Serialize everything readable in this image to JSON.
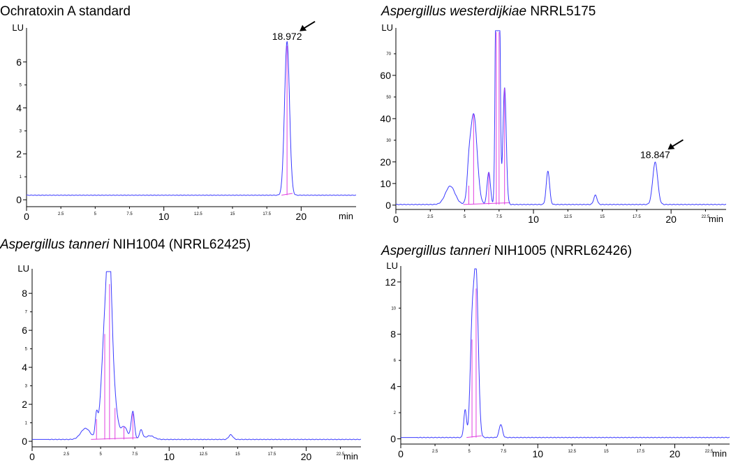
{
  "chart_data": [
    {
      "type": "line",
      "title_parts": [
        {
          "text": "Ochratoxin A standard",
          "italic": false
        }
      ],
      "ylabel": "LU",
      "xlabel": "min",
      "xlim": [
        0,
        24
      ],
      "ylim": [
        -0.3,
        7.3
      ],
      "x_major_ticks": [
        0,
        10,
        20
      ],
      "x_minor_ticks": [
        2.5,
        5,
        7.5,
        12.5,
        15,
        17.5
      ],
      "y_major_ticks": [
        0,
        2,
        4,
        6
      ],
      "y_minor_ticks": [
        1,
        3,
        5
      ],
      "baseline": 0.2,
      "peaks": [
        {
          "rt": 18.972,
          "height": 6.7,
          "width": 0.18
        }
      ],
      "integration_markers": [
        {
          "rt": 18.972,
          "height": 6.7
        }
      ],
      "annotations": [
        {
          "text": "18.972",
          "x": 18.972,
          "y": 6.85,
          "arrow": true
        }
      ],
      "series_color": "#3a3aff",
      "integration_color": "#e040e0"
    },
    {
      "type": "line",
      "title_parts": [
        {
          "text": "Aspergillus westerdijkiae",
          "italic": true
        },
        {
          "text": " NRRL5175",
          "italic": false
        }
      ],
      "ylabel": "LU",
      "xlabel": "min",
      "xlim": [
        0,
        24
      ],
      "ylim": [
        -2,
        80
      ],
      "x_major_ticks": [
        0,
        10,
        20
      ],
      "x_minor_ticks": [
        2.5,
        5,
        7.5,
        12.5,
        15,
        17.5,
        22.5
      ],
      "y_major_ticks": [
        0,
        10,
        20,
        40,
        60
      ],
      "y_minor_ticks": [
        30,
        50,
        70
      ],
      "baseline": 0.3,
      "peaks": [
        {
          "rt": 3.95,
          "height": 8.5,
          "width": 0.35
        },
        {
          "rt": 5.3,
          "height": 9,
          "width": 0.12
        },
        {
          "rt": 5.65,
          "height": 42,
          "width": 0.25
        },
        {
          "rt": 6.75,
          "height": 15,
          "width": 0.12
        },
        {
          "rt": 7.3,
          "height": 120,
          "width": 0.08
        },
        {
          "rt": 7.5,
          "height": 120,
          "width": 0.08
        },
        {
          "rt": 7.9,
          "height": 54,
          "width": 0.12
        },
        {
          "rt": 11.05,
          "height": 15.5,
          "width": 0.12
        },
        {
          "rt": 14.5,
          "height": 4.3,
          "width": 0.12
        },
        {
          "rt": 18.847,
          "height": 19.5,
          "width": 0.18
        }
      ],
      "integration_markers": [
        {
          "rt": 5.3,
          "height": 9
        },
        {
          "rt": 5.65,
          "height": 42
        },
        {
          "rt": 6.75,
          "height": 15
        },
        {
          "rt": 7.3,
          "height": 80
        },
        {
          "rt": 7.5,
          "height": 80
        },
        {
          "rt": 7.9,
          "height": 54
        }
      ],
      "annotations": [
        {
          "text": "18.847",
          "x": 18.847,
          "y": 20.5,
          "arrow": true
        }
      ],
      "series_color": "#3a3aff",
      "integration_color": "#e040e0"
    },
    {
      "type": "line",
      "title_parts": [
        {
          "text": "Aspergillus tanneri",
          "italic": true
        },
        {
          "text": " NIH1004 (NRRL62425)",
          "italic": false
        }
      ],
      "ylabel": "LU",
      "xlabel": "min",
      "xlim": [
        0,
        24
      ],
      "ylim": [
        -0.3,
        9.1
      ],
      "x_major_ticks": [
        0,
        10,
        20
      ],
      "x_minor_ticks": [
        2.5,
        5,
        7.5,
        12.5,
        15,
        17.5,
        22.5
      ],
      "y_major_ticks": [
        0,
        2,
        4,
        6,
        8
      ],
      "y_minor_ticks": [
        1,
        3,
        5,
        7
      ],
      "baseline": 0.1,
      "peaks": [
        {
          "rt": 3.9,
          "height": 0.6,
          "width": 0.35
        },
        {
          "rt": 4.7,
          "height": 1.2,
          "width": 0.1
        },
        {
          "rt": 5.3,
          "height": 5.4,
          "width": 0.25
        },
        {
          "rt": 5.65,
          "height": 8.3,
          "width": 0.2
        },
        {
          "rt": 6.05,
          "height": 1.6,
          "width": 0.2
        },
        {
          "rt": 6.7,
          "height": 0.7,
          "width": 0.25
        },
        {
          "rt": 7.35,
          "height": 1.5,
          "width": 0.12
        },
        {
          "rt": 7.95,
          "height": 0.5,
          "width": 0.12
        },
        {
          "rt": 8.6,
          "height": 0.2,
          "width": 0.3
        },
        {
          "rt": 14.5,
          "height": 0.25,
          "width": 0.15
        }
      ],
      "integration_markers": [
        {
          "rt": 4.7,
          "height": 1.2
        },
        {
          "rt": 5.3,
          "height": 5.8
        },
        {
          "rt": 5.65,
          "height": 8.5
        },
        {
          "rt": 6.05,
          "height": 1.8
        },
        {
          "rt": 6.7,
          "height": 0.8
        },
        {
          "rt": 7.35,
          "height": 1.5
        }
      ],
      "annotations": [],
      "series_color": "#3a3aff",
      "integration_color": "#e040e0"
    },
    {
      "type": "line",
      "title_parts": [
        {
          "text": "Aspergillus tanneri",
          "italic": true
        },
        {
          "text": " NIH1005 (NRRL62426)",
          "italic": false
        }
      ],
      "ylabel": "LU",
      "xlabel": "min",
      "xlim": [
        0,
        24
      ],
      "ylim": [
        -0.4,
        12.9
      ],
      "x_major_ticks": [
        0,
        10,
        20
      ],
      "x_minor_ticks": [
        2.5,
        5,
        7.5,
        12.5,
        15,
        17.5,
        22.5
      ],
      "y_major_ticks": [
        0,
        4,
        8,
        12
      ],
      "y_minor_ticks": [
        2,
        6,
        10
      ],
      "baseline": 0.1,
      "peaks": [
        {
          "rt": 4.7,
          "height": 2.1,
          "width": 0.1
        },
        {
          "rt": 5.2,
          "height": 7.6,
          "width": 0.14
        },
        {
          "rt": 5.5,
          "height": 12.4,
          "width": 0.16
        },
        {
          "rt": 7.3,
          "height": 1.0,
          "width": 0.12
        }
      ],
      "integration_markers": [
        {
          "rt": 5.2,
          "height": 7.6
        },
        {
          "rt": 5.5,
          "height": 11.5
        }
      ],
      "annotations": [],
      "series_color": "#3a3aff",
      "integration_color": "#e040e0"
    }
  ]
}
